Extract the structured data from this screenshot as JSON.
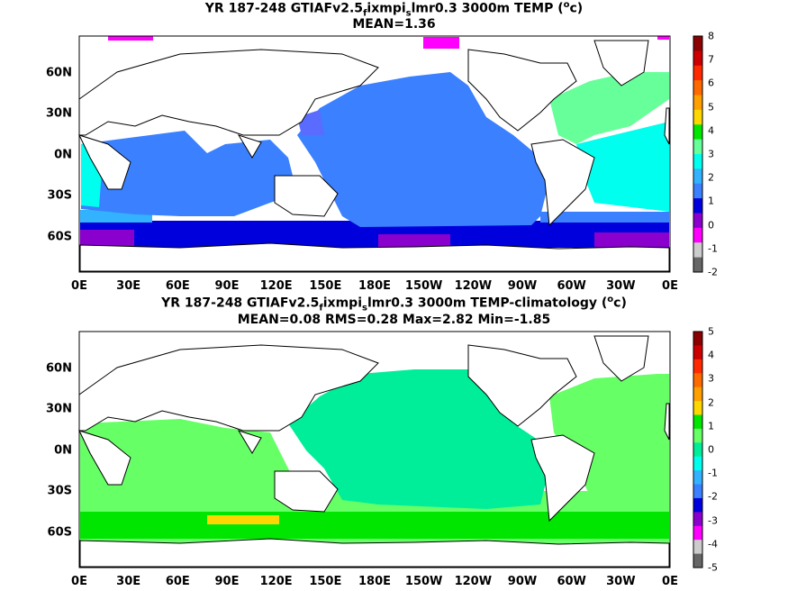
{
  "panels": [
    {
      "title_parts": {
        "pre": "YR 187-248 GTIAFv2.5",
        "sub1": "f",
        "mid": "ixmpi",
        "sub2": "s",
        "post": "lmr0.3 3000m TEMP (",
        "sup": "o",
        "end": "c)"
      },
      "stats": "MEAN=1.36",
      "colorbar_ticks": [
        "8",
        "7",
        "6",
        "5",
        "4",
        "3",
        "2",
        "1",
        "0",
        "-1",
        "-2"
      ]
    },
    {
      "title_parts": {
        "pre": "YR 187-248 GTIAFv2.5",
        "sub1": "f",
        "mid": "ixmpi",
        "sub2": "s",
        "post": "lmr0.3 3000m TEMP-climatology (",
        "sup": "o",
        "end": "c)"
      },
      "stats": "MEAN=0.08   RMS=0.28   Max=2.82   Min=-1.85",
      "colorbar_ticks": [
        "5",
        "4",
        "3",
        "2",
        "1",
        "0",
        "-1",
        "-2",
        "-3",
        "-4",
        "-5"
      ]
    }
  ],
  "x_ticks": [
    "0E",
    "30E",
    "60E",
    "90E",
    "120E",
    "150E",
    "180E",
    "150W",
    "120W",
    "90W",
    "60W",
    "30W",
    "0E"
  ],
  "y_ticks": [
    "60N",
    "30N",
    "0N",
    "30S",
    "60S"
  ],
  "colors": {
    "top_colorbar": [
      "#8b0000",
      "#cc0000",
      "#ff2a00",
      "#ff6a00",
      "#ff9f00",
      "#ffd700",
      "#00e600",
      "#66ff99",
      "#00ffee",
      "#33b3ff",
      "#3a80ff",
      "#0000dd",
      "#8a00cc",
      "#ff00ff",
      "#cccccc",
      "#666666"
    ],
    "bottom_colorbar": [
      "#8b0000",
      "#cc0000",
      "#ff2a00",
      "#ff6a00",
      "#ff9f00",
      "#ffd700",
      "#00e600",
      "#66ff66",
      "#00ee99",
      "#00ffee",
      "#33b3ff",
      "#3a80ff",
      "#0000dd",
      "#8a00cc",
      "#ff00ff",
      "#cccccc",
      "#666666"
    ]
  }
}
